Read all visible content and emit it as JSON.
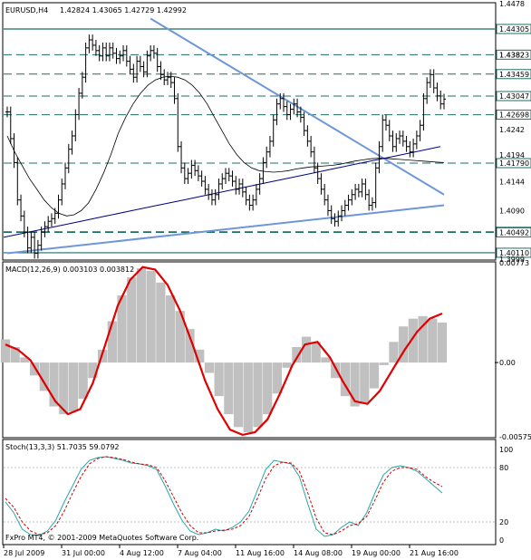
{
  "colors": {
    "grid_dash": "#1e6e64",
    "trend": "#6f96d8",
    "price": "#000000",
    "ma_fast": "#000000",
    "ma_green_light": "#3ccc7a",
    "ma_green_dark": "#006b2e",
    "ma_blue": "#00008b",
    "macd_hist": "#c0c0c0",
    "macd_signal": "#e00000",
    "stoch_main": "#2aa6a6",
    "stoch_signal": "#cc0000",
    "label_bg": "#ffffff",
    "label_border": "#1e6e64"
  },
  "header": {
    "symbol_tf": "EURUSD,H4",
    "ohlc": "1.42824 1.43065 1.42729 1.42992"
  },
  "copyright": "FxPro MT4, © 2001-2009 MetaQuotes Software Corp.",
  "chart_data": [
    {
      "type": "line",
      "panel": "price",
      "title": "EURUSD,H4",
      "ohlc_readout": "1.42824 1.43065 1.42729 1.42992",
      "ylim": [
        1.3999,
        1.4478
      ],
      "y_tick_labels": [
        "1.4478",
        "1.4430",
        "1.4382",
        "1.4346",
        "1.4304",
        "1.4270",
        "1.4242",
        "1.4194",
        "1.4179",
        "1.4144",
        "1.4090",
        "1.4050",
        "1.4049",
        "1.4011",
        "1.3999"
      ],
      "horizontal_levels": [
        1.44305,
        1.43823,
        1.43459,
        1.43047,
        1.42698,
        1.4179,
        1.40503,
        1.40492,
        1.4011
      ],
      "level_labels": [
        "1.44305",
        "1.43823",
        "1.43459",
        "1.43047",
        "1.42698",
        "1.41790",
        "1.40503",
        "1.40492",
        "1.40110"
      ],
      "y_tick_visible": [
        "1.4478",
        "1.4382",
        "1.4242",
        "1.4194",
        "1.4144",
        "1.4090",
        "1.3999"
      ],
      "x_tick_labels": [
        "28 Jul 2009",
        "31 Jul 00:00",
        "4 Aug 12:00",
        "7 Aug 04:00",
        "11 Aug 16:00",
        "14 Aug 08:00",
        "19 Aug 00:00",
        "21 Aug 16:00"
      ],
      "trendlines": [
        {
          "name": "upper",
          "from_bar": 42,
          "from_price": 1.445,
          "to_bar": 128,
          "to_price": 1.412
        },
        {
          "name": "lower",
          "from_bar": 0,
          "from_price": 1.401,
          "to_bar": 128,
          "to_price": 1.41
        }
      ],
      "close_series": [
        1.4275,
        1.4225,
        1.418,
        1.411,
        1.408,
        1.405,
        1.402,
        1.404,
        1.401,
        1.4025,
        1.405,
        1.406,
        1.407,
        1.4075,
        1.4085,
        1.411,
        1.414,
        1.417,
        1.4205,
        1.423,
        1.427,
        1.431,
        1.434,
        1.4395,
        1.441,
        1.44,
        1.439,
        1.438,
        1.4395,
        1.438,
        1.4395,
        1.4385,
        1.4375,
        1.438,
        1.439,
        1.437,
        1.4355,
        1.434,
        1.437,
        1.436,
        1.435,
        1.438,
        1.439,
        1.4385,
        1.436,
        1.4345,
        1.4335,
        1.434,
        1.433,
        1.43,
        1.421,
        1.417,
        1.415,
        1.416,
        1.4175,
        1.4165,
        1.4155,
        1.4145,
        1.413,
        1.412,
        1.411,
        1.412,
        1.414,
        1.415,
        1.416,
        1.4155,
        1.4145,
        1.413,
        1.414,
        1.4125,
        1.411,
        1.41,
        1.411,
        1.413,
        1.415,
        1.418,
        1.42,
        1.422,
        1.426,
        1.429,
        1.43,
        1.4285,
        1.427,
        1.428,
        1.429,
        1.4275,
        1.4265,
        1.424,
        1.422,
        1.42,
        1.417,
        1.415,
        1.413,
        1.411,
        1.409,
        1.4075,
        1.407,
        1.408,
        1.409,
        1.41,
        1.411,
        1.412,
        1.413,
        1.4125,
        1.414,
        1.412,
        1.41,
        1.4105,
        1.417,
        1.421,
        1.426,
        1.425,
        1.423,
        1.421,
        1.4225,
        1.423,
        1.422,
        1.421,
        1.42,
        1.4215,
        1.423,
        1.425,
        1.43,
        1.433,
        1.4345,
        1.432,
        1.4305,
        1.429,
        1.4299
      ],
      "ma_series": [
        {
          "label": "fast",
          "values": [
            1.423,
            1.42,
            1.4175,
            1.415,
            1.413,
            1.411,
            1.4095,
            1.4085,
            1.408,
            1.4082,
            1.409,
            1.4105,
            1.413,
            1.416,
            1.4195,
            1.4235,
            1.4265,
            1.429,
            1.431,
            1.4325,
            1.4335,
            1.434,
            1.4342,
            1.434,
            1.4335,
            1.4325,
            1.431,
            1.429,
            1.4265,
            1.424,
            1.4215,
            1.4195,
            1.418,
            1.417,
            1.4165,
            1.4163,
            1.4162,
            1.4163,
            1.4165,
            1.4168,
            1.417,
            1.4172,
            1.4173,
            1.4174,
            1.4175,
            1.4177,
            1.418,
            1.4183,
            1.4185,
            1.4187,
            1.4188,
            1.4188,
            1.4187,
            1.4186,
            1.4185,
            1.4184,
            1.4183,
            1.4182,
            1.4181,
            1.418
          ]
        },
        {
          "label": "slow",
          "values": [
            1.404,
            1.405,
            1.406,
            1.407,
            1.408,
            1.409,
            1.41,
            1.411,
            1.412,
            1.413,
            1.414,
            1.415,
            1.416,
            1.417,
            1.418,
            1.419,
            1.42,
            1.421
          ]
        }
      ]
    },
    {
      "type": "bar",
      "panel": "macd",
      "title": "MACD(12,26,9) 0.003103 0.003812",
      "ylim": [
        -0.00575,
        0.00773
      ],
      "y_tick_labels": [
        "0.00773",
        "0.00",
        "-0.00575"
      ],
      "histogram": [
        0.0018,
        0.0012,
        0.0004,
        -0.001,
        -0.0022,
        -0.0034,
        -0.004,
        -0.0038,
        -0.0028,
        -0.0012,
        0.001,
        0.0032,
        0.0052,
        0.0066,
        0.0073,
        0.0071,
        0.0062,
        0.0052,
        0.004,
        0.0026,
        0.001,
        -0.0008,
        -0.0026,
        -0.004,
        -0.005,
        -0.0054,
        -0.005,
        -0.004,
        -0.0024,
        -0.0004,
        0.0012,
        0.002,
        0.0016,
        0.0004,
        -0.0012,
        -0.0026,
        -0.0034,
        -0.0032,
        -0.002,
        -0.0002,
        0.0016,
        0.0028,
        0.0034,
        0.0036,
        0.0034,
        0.0031
      ],
      "signal": [
        0.0014,
        0.001,
        0.0002,
        -0.0014,
        -0.003,
        -0.004,
        -0.0036,
        -0.0016,
        0.0014,
        0.0044,
        0.0064,
        0.0074,
        0.0072,
        0.006,
        0.004,
        0.0014,
        -0.0014,
        -0.0036,
        -0.0052,
        -0.0056,
        -0.0054,
        -0.0044,
        -0.0024,
        -0.0002,
        0.0014,
        0.0016,
        0.0004,
        -0.0014,
        -0.003,
        -0.0032,
        -0.0022,
        -0.0006,
        0.001,
        0.0024,
        0.0034,
        0.0038
      ]
    },
    {
      "type": "line",
      "panel": "stochastic",
      "title": "Stoch(13,3,3) 51.7035 59.0792",
      "ylim": [
        0,
        100
      ],
      "y_tick_labels": [
        "100",
        "80",
        "20",
        "0"
      ],
      "series": [
        {
          "name": "main",
          "values": [
            42,
            30,
            12,
            6,
            5,
            10,
            22,
            42,
            60,
            78,
            88,
            91,
            92,
            90,
            88,
            85,
            84,
            82,
            78,
            60,
            40,
            22,
            10,
            6,
            8,
            12,
            10,
            14,
            20,
            32,
            55,
            78,
            88,
            86,
            84,
            70,
            40,
            12,
            4,
            6,
            14,
            20,
            16,
            30,
            52,
            72,
            80,
            82,
            80,
            76,
            68,
            60,
            52
          ]
        },
        {
          "name": "signal",
          "values": [
            46,
            36,
            20,
            10,
            6,
            8,
            16,
            32,
            52,
            70,
            84,
            90,
            92,
            91,
            89,
            86,
            84,
            83,
            80,
            66,
            48,
            30,
            16,
            8,
            8,
            10,
            11,
            12,
            16,
            26,
            46,
            68,
            82,
            86,
            85,
            76,
            52,
            24,
            8,
            6,
            10,
            16,
            18,
            26,
            44,
            64,
            76,
            80,
            80,
            78,
            70,
            64,
            59
          ]
        }
      ]
    }
  ]
}
